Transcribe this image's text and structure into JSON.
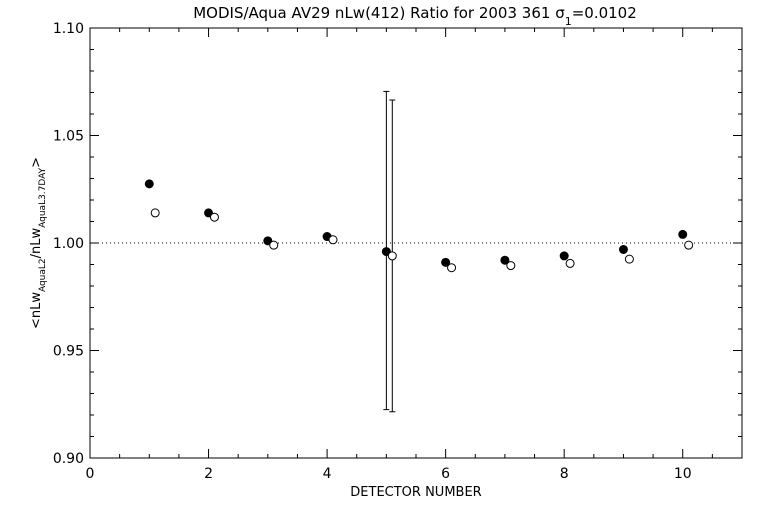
{
  "chart_data": {
    "type": "scatter",
    "title_main": "MODIS/Aqua AV29 nLw(412) Ratio for 2003 361 ",
    "title_sigma": "σ",
    "title_sigma_sub": "1",
    "title_sigma_value": "=0.0102",
    "xlabel": "DETECTOR NUMBER",
    "ylabel_parts": {
      "open": "<nLw",
      "sub1": "AquaL2",
      "mid": "/nLw",
      "sub2": "AquaL3.7DAY",
      "close": ">"
    },
    "xlim": [
      0,
      11
    ],
    "ylim": [
      0.9,
      1.1
    ],
    "xticks": [
      0,
      2,
      4,
      6,
      8,
      10
    ],
    "xtick_labels": [
      "0",
      "2",
      "4",
      "6",
      "8",
      "10"
    ],
    "yticks": [
      0.9,
      0.95,
      1.0,
      1.05,
      1.1
    ],
    "ytick_labels": [
      "0.90",
      "0.95",
      "1.00",
      "1.05",
      "1.10"
    ],
    "reference_y": 1.0,
    "series": [
      {
        "marker": "filled-circle",
        "x": [
          1,
          2,
          3,
          4,
          5,
          6,
          7,
          8,
          9,
          10
        ],
        "y": [
          1.0275,
          1.014,
          1.001,
          1.003,
          0.996,
          0.991,
          0.992,
          0.994,
          0.997,
          1.004
        ],
        "error_bars": [
          {
            "x": 5,
            "low": 0.9225,
            "high": 1.0705
          }
        ]
      },
      {
        "marker": "open-circle",
        "x": [
          1.1,
          2.1,
          3.1,
          4.1,
          5.1,
          6.1,
          7.1,
          8.1,
          9.1,
          10.1
        ],
        "y": [
          1.014,
          1.012,
          0.999,
          1.0015,
          0.994,
          0.9885,
          0.9895,
          0.9905,
          0.9925,
          0.999
        ],
        "error_bars": [
          {
            "x": 5.1,
            "low": 0.9215,
            "high": 1.0665
          }
        ]
      }
    ],
    "grid": false,
    "colors": {
      "foreground": "#000000",
      "background": "#ffffff"
    }
  }
}
